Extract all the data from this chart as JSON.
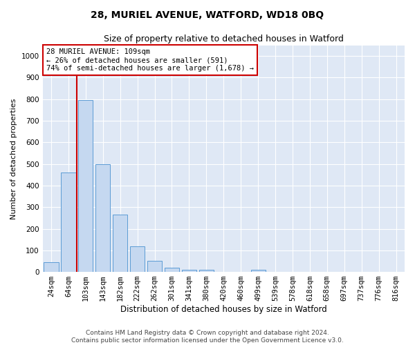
{
  "title1": "28, MURIEL AVENUE, WATFORD, WD18 0BQ",
  "title2": "Size of property relative to detached houses in Watford",
  "xlabel": "Distribution of detached houses by size in Watford",
  "ylabel": "Number of detached properties",
  "footer1": "Contains HM Land Registry data © Crown copyright and database right 2024.",
  "footer2": "Contains public sector information licensed under the Open Government Licence v3.0.",
  "categories": [
    "24sqm",
    "64sqm",
    "103sqm",
    "143sqm",
    "182sqm",
    "222sqm",
    "262sqm",
    "301sqm",
    "341sqm",
    "380sqm",
    "420sqm",
    "460sqm",
    "499sqm",
    "539sqm",
    "578sqm",
    "618sqm",
    "658sqm",
    "697sqm",
    "737sqm",
    "776sqm",
    "816sqm"
  ],
  "values": [
    45,
    460,
    795,
    500,
    265,
    120,
    50,
    20,
    10,
    10,
    0,
    0,
    10,
    0,
    0,
    0,
    0,
    0,
    0,
    0,
    0
  ],
  "bar_color": "#c5d8f0",
  "bar_edge_color": "#5b9bd5",
  "red_line_color": "#cc0000",
  "red_line_x": 1.5,
  "annotation_line1": "28 MURIEL AVENUE: 109sqm",
  "annotation_line2": "← 26% of detached houses are smaller (591)",
  "annotation_line3": "74% of semi-detached houses are larger (1,678) →",
  "annotation_box_color": "#ffffff",
  "annotation_box_edge": "#cc0000",
  "ylim": [
    0,
    1050
  ],
  "yticks": [
    0,
    100,
    200,
    300,
    400,
    500,
    600,
    700,
    800,
    900,
    1000
  ],
  "background_color": "#dfe8f5",
  "fig_background": "#ffffff",
  "grid_color": "#ffffff",
  "title1_fontsize": 10,
  "title2_fontsize": 9,
  "xlabel_fontsize": 8.5,
  "ylabel_fontsize": 8,
  "tick_fontsize": 7.5,
  "annotation_fontsize": 7.5,
  "footer_fontsize": 6.5
}
